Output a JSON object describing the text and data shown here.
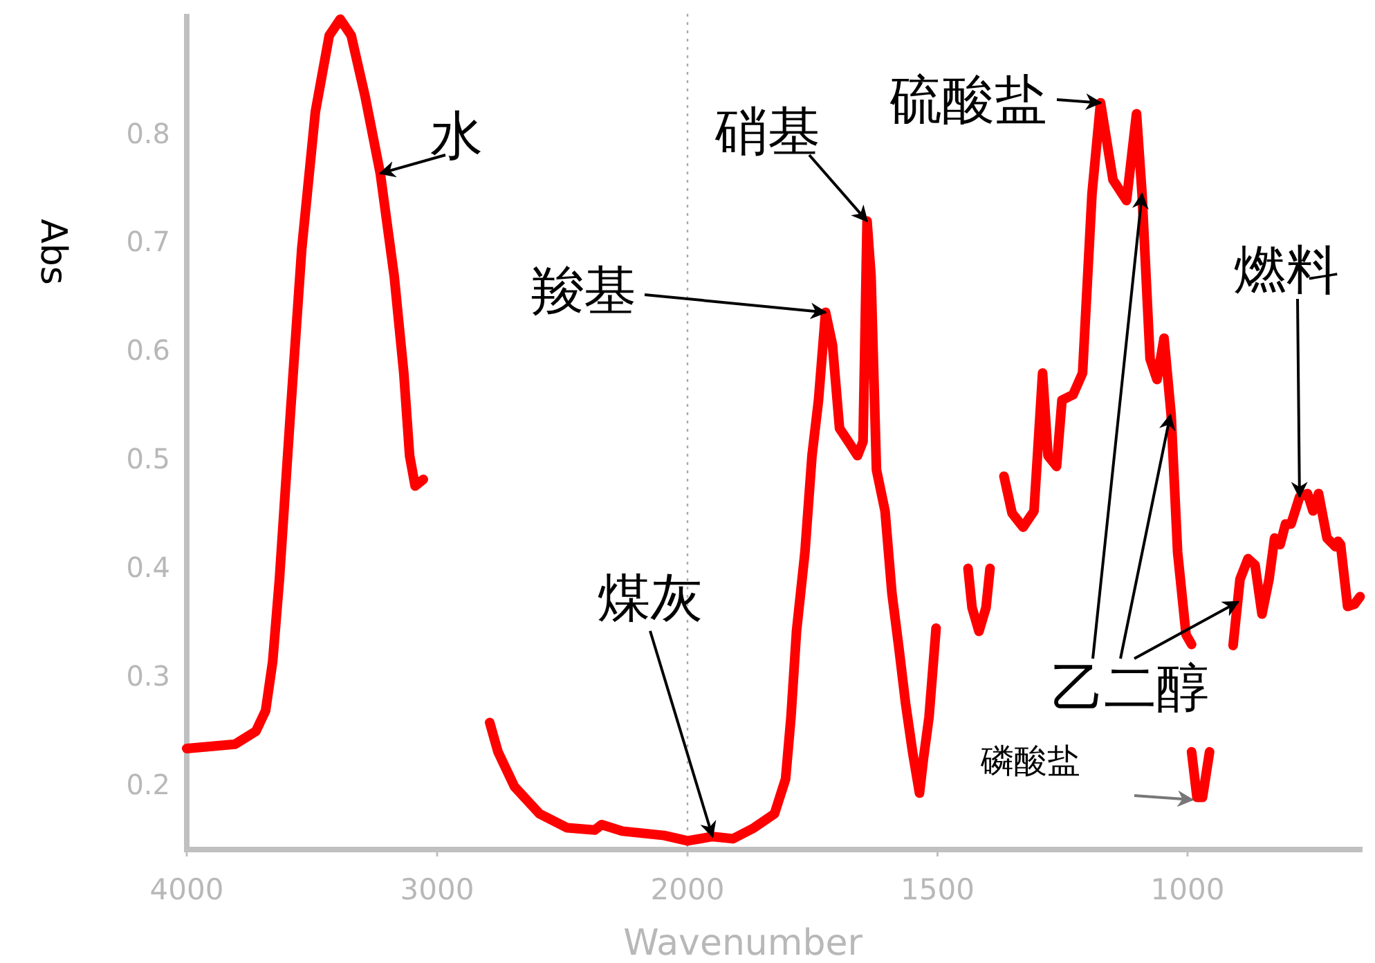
{
  "chart_data": [
    {
      "type": "line",
      "ylabel": "Abs",
      "xlim": [
        4000,
        2000
      ],
      "xticks": [
        4000,
        3000,
        2000
      ],
      "ylim": [
        0.14,
        0.91
      ],
      "yticks": [
        0.2,
        0.3,
        0.4,
        0.5,
        0.6,
        0.7,
        0.8
      ],
      "marker": "none",
      "line_style": "solid",
      "series": [
        {
          "color": "#ff0000",
          "x": [
            4000,
            3807,
            3724,
            3685,
            3657,
            3630,
            3586,
            3541,
            3486,
            3431,
            3387,
            3343,
            3287,
            3227,
            3171,
            3133,
            3110,
            3088,
            3055,
            null,
            2790,
            2757,
            2691,
            2591,
            2481,
            2370,
            2343,
            2260,
            2094,
            2000
          ],
          "values": [
            0.233,
            0.237,
            0.249,
            0.268,
            0.313,
            0.389,
            0.541,
            0.693,
            0.82,
            0.89,
            0.905,
            0.89,
            0.833,
            0.763,
            0.668,
            0.579,
            0.503,
            0.475,
            0.481,
            null,
            0.257,
            0.23,
            0.198,
            0.173,
            0.16,
            0.158,
            0.163,
            0.157,
            0.153,
            0.148
          ]
        }
      ],
      "annotations": [
        {
          "text": "水",
          "x": 3227,
          "y": 0.763
        }
      ]
    },
    {
      "type": "line",
      "xlabel": "Wavenumber",
      "xlim": [
        2000,
        650
      ],
      "xticks": [
        1500,
        1000
      ],
      "ylim": [
        0.14,
        0.91
      ],
      "tick_labels": "x",
      "marker": "none",
      "line_style": "solid",
      "series": [
        {
          "color": "#ff0000",
          "x": [
            2000,
            1950,
            1909,
            1867,
            1826,
            1804,
            1793,
            1782,
            1765,
            1751,
            1738,
            1724,
            1710,
            1696,
            1674,
            1660,
            1649,
            1641,
            1633,
            1622,
            1605,
            1591,
            1577,
            1564,
            1550,
            1536,
            1528,
            1517,
            1503,
            null,
            1439,
            1431,
            1417,
            1403,
            1395,
            null,
            1367,
            1351,
            1329,
            1307,
            1290,
            1279,
            1262,
            1251,
            1229,
            1210,
            1191,
            1174,
            1149,
            1122,
            1102,
            1091,
            1075,
            1061,
            1047,
            1033,
            1020,
            1003,
            992,
            null,
            992,
            981,
            970,
            956,
            null,
            909,
            895,
            879,
            865,
            851,
            837,
            826,
            815,
            804,
            793,
            776,
            760,
            749,
            738,
            721,
            704,
            699,
            694,
            680,
            666,
            655
          ],
          "values": [
            0.148,
            0.152,
            0.15,
            0.16,
            0.173,
            0.205,
            0.262,
            0.341,
            0.414,
            0.503,
            0.554,
            0.635,
            0.605,
            0.528,
            0.513,
            0.503,
            0.516,
            0.719,
            0.668,
            0.49,
            0.452,
            0.376,
            0.325,
            0.275,
            0.23,
            0.192,
            0.224,
            0.262,
            0.344,
            null,
            0.399,
            0.363,
            0.341,
            0.363,
            0.399,
            null,
            0.484,
            0.45,
            0.437,
            0.452,
            0.579,
            0.503,
            0.493,
            0.554,
            0.559,
            0.579,
            0.744,
            0.828,
            0.757,
            0.738,
            0.818,
            0.744,
            0.592,
            0.573,
            0.611,
            0.541,
            0.414,
            0.338,
            0.329,
            null,
            0.23,
            0.188,
            0.188,
            0.23,
            null,
            0.328,
            0.389,
            0.408,
            0.402,
            0.357,
            0.389,
            0.427,
            0.421,
            0.44,
            0.44,
            0.465,
            0.468,
            0.452,
            0.468,
            0.427,
            0.419,
            0.424,
            0.421,
            0.364,
            0.366,
            0.373
          ]
        }
      ],
      "ref_lines": [
        {
          "axis": "x",
          "value": 2000,
          "color": "#aaaaaa",
          "line_style": "dotted"
        }
      ],
      "annotations": [
        {
          "text": "羧基",
          "x": 1724,
          "y": 0.635
        },
        {
          "text": "煤灰",
          "x": 1950,
          "y": 0.152
        },
        {
          "text": "硝基",
          "x": 1641,
          "y": 0.719
        },
        {
          "text": "硫酸盐",
          "x": 1174,
          "y": 0.828
        },
        {
          "text": "乙二醇",
          "x": 1091,
          "y": 0.744
        },
        {
          "text": "燃料",
          "x": 776,
          "y": 0.465
        },
        "磷酸盐"
      ]
    }
  ]
}
